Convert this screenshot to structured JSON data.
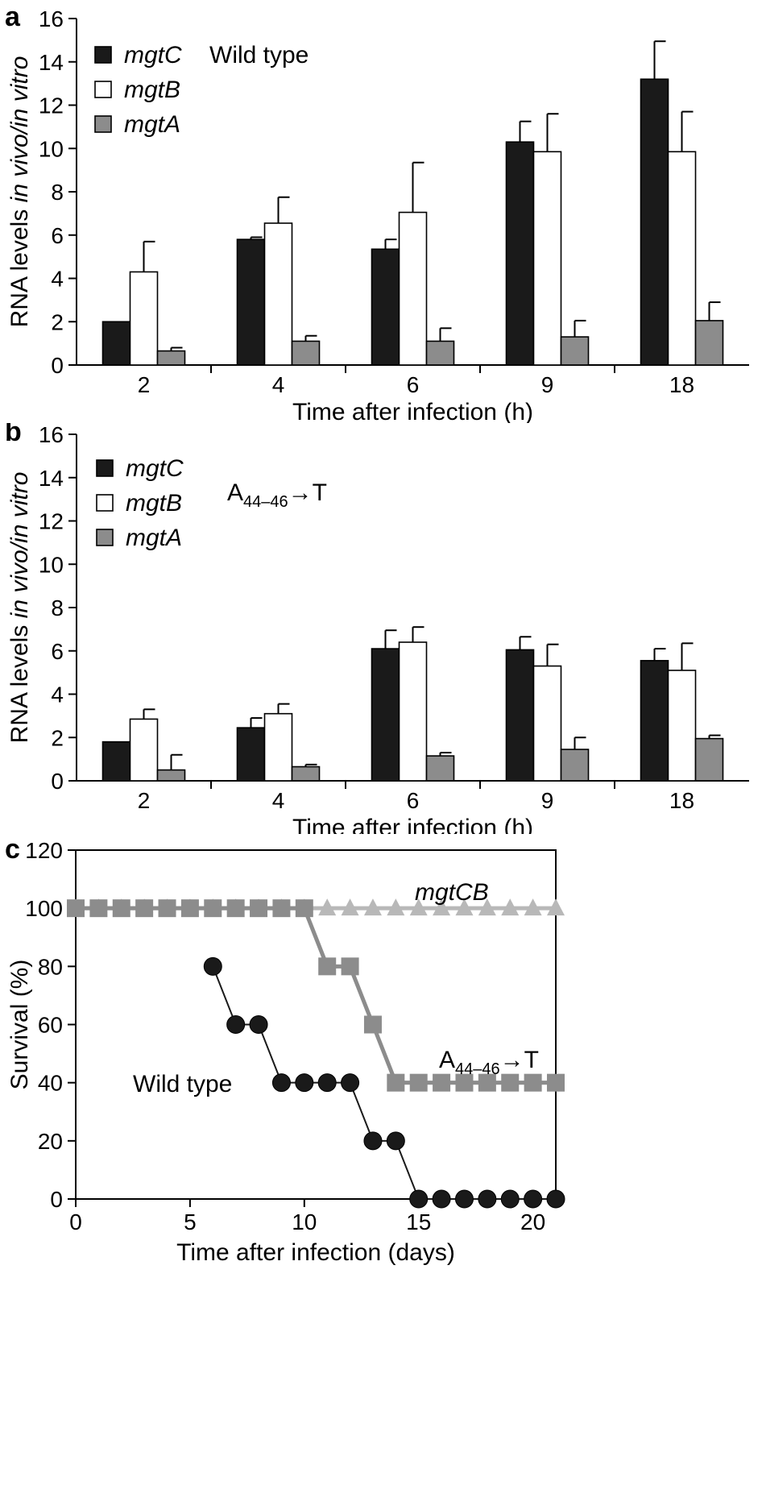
{
  "chart_data": [
    {
      "panel": "a",
      "type": "bar",
      "condition": "Wild type",
      "ylabel_plain": "RNA levels ",
      "ylabel_italic": "in vivo/in vitro",
      "xlabel": "Time after infection (h)",
      "ylim": [
        0,
        16
      ],
      "yticks": [
        "0",
        "2",
        "4",
        "6",
        "8",
        "10",
        "12",
        "14",
        "16"
      ],
      "categories": [
        "2",
        "4",
        "6",
        "9",
        "18"
      ],
      "series": [
        {
          "name": "mgtC",
          "color": "#1a1a1a",
          "values": [
            2.0,
            5.8,
            5.35,
            10.3,
            13.2
          ],
          "errors": [
            0.0,
            0.1,
            0.45,
            0.95,
            1.75
          ]
        },
        {
          "name": "mgtB",
          "color": "#ffffff",
          "values": [
            4.3,
            6.55,
            7.05,
            9.85,
            9.85
          ],
          "errors": [
            1.4,
            1.2,
            2.3,
            1.75,
            1.85
          ]
        },
        {
          "name": "mgtA",
          "color": "#8c8c8c",
          "values": [
            0.65,
            1.1,
            1.1,
            1.3,
            2.05
          ],
          "errors": [
            0.15,
            0.25,
            0.6,
            0.75,
            0.85
          ]
        }
      ]
    },
    {
      "panel": "b",
      "type": "bar",
      "condition_main": "A",
      "condition_sub": "44–46",
      "condition_tail": "→T",
      "ylabel_plain": "RNA levels ",
      "ylabel_italic": "in vivo/in vitro",
      "xlabel": "Time after infection (h)",
      "ylim": [
        0,
        16
      ],
      "yticks": [
        "0",
        "2",
        "4",
        "6",
        "8",
        "10",
        "12",
        "14",
        "16"
      ],
      "categories": [
        "2",
        "4",
        "6",
        "9",
        "18"
      ],
      "series": [
        {
          "name": "mgtC",
          "color": "#1a1a1a",
          "values": [
            1.8,
            2.45,
            6.1,
            6.05,
            5.55
          ],
          "errors": [
            0.0,
            0.45,
            0.85,
            0.6,
            0.55
          ]
        },
        {
          "name": "mgtB",
          "color": "#ffffff",
          "values": [
            2.85,
            3.1,
            6.4,
            5.3,
            5.1
          ],
          "errors": [
            0.45,
            0.45,
            0.7,
            1.0,
            1.25
          ]
        },
        {
          "name": "mgtA",
          "color": "#8c8c8c",
          "values": [
            0.5,
            0.65,
            1.15,
            1.45,
            1.95
          ],
          "errors": [
            0.7,
            0.1,
            0.15,
            0.55,
            0.15
          ]
        }
      ]
    },
    {
      "panel": "c",
      "type": "line",
      "ylabel": "Survival (%)",
      "xlabel": "Time after infection (days)",
      "xlim": [
        0,
        21
      ],
      "ylim": [
        0,
        120
      ],
      "xticks": [
        "0",
        "5",
        "10",
        "15",
        "20"
      ],
      "yticks": [
        "0",
        "20",
        "40",
        "60",
        "80",
        "100",
        "120"
      ],
      "series": [
        {
          "name": "mgtCB",
          "color": "#b8b8b8",
          "marker": "triangle",
          "x": [
            0,
            1,
            2,
            3,
            4,
            5,
            6,
            7,
            8,
            9,
            10,
            11,
            12,
            13,
            14,
            15,
            16,
            17,
            18,
            19,
            20,
            21
          ],
          "y": [
            100,
            100,
            100,
            100,
            100,
            100,
            100,
            100,
            100,
            100,
            100,
            100,
            100,
            100,
            100,
            100,
            100,
            100,
            100,
            100,
            100,
            100
          ]
        },
        {
          "name": "A44–46→T",
          "label_main": "A",
          "label_sub": "44–46",
          "label_tail": "→T",
          "color": "#8c8c8c",
          "marker": "square",
          "x": [
            0,
            1,
            2,
            3,
            4,
            5,
            6,
            7,
            8,
            9,
            10,
            11,
            12,
            13,
            14,
            15,
            16,
            17,
            18,
            19,
            20,
            21
          ],
          "y": [
            100,
            100,
            100,
            100,
            100,
            100,
            100,
            100,
            100,
            100,
            100,
            80,
            80,
            60,
            40,
            40,
            40,
            40,
            40,
            40,
            40,
            40
          ]
        },
        {
          "name": "Wild type",
          "color": "#1a1a1a",
          "marker": "circle",
          "x": [
            6,
            7,
            8,
            9,
            10,
            11,
            12,
            13,
            14,
            15,
            16,
            17,
            18,
            19,
            20,
            21
          ],
          "y": [
            80,
            60,
            60,
            40,
            40,
            40,
            40,
            20,
            20,
            0,
            0,
            0,
            0,
            0,
            0,
            0
          ]
        }
      ]
    }
  ]
}
